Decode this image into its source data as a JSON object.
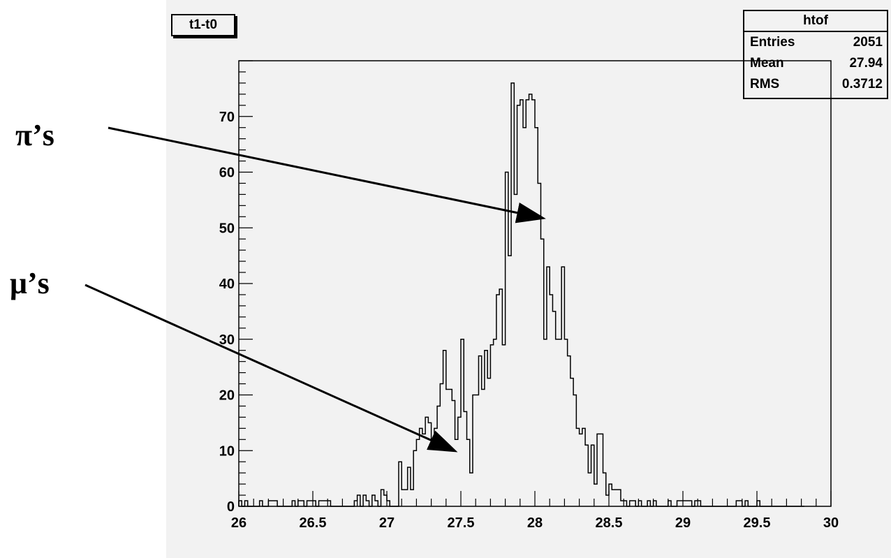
{
  "title": "t1-t0",
  "stats": {
    "name": "htof",
    "rows": [
      {
        "label": "Entries",
        "value": "2051"
      },
      {
        "label": "Mean",
        "value": "27.94"
      },
      {
        "label": "RMS",
        "value": "0.3712"
      }
    ]
  },
  "annotations": {
    "pions": "π’s",
    "muons": "μ’s"
  },
  "chart_data": {
    "type": "bar",
    "title": "t1-t0",
    "xlabel": "",
    "ylabel": "",
    "xlim": [
      26,
      30
    ],
    "ylim": [
      0,
      80
    ],
    "x_ticks": [
      26,
      26.5,
      27,
      27.5,
      28,
      28.5,
      29,
      29.5,
      30
    ],
    "y_ticks": [
      0,
      10,
      20,
      30,
      40,
      50,
      60,
      70
    ],
    "bin_width": 0.02,
    "series": [
      {
        "values": [
          1,
          0,
          1,
          0,
          0,
          0,
          0,
          1,
          0,
          0,
          1,
          1,
          1,
          0,
          0,
          0,
          0,
          0,
          1,
          0,
          1,
          1,
          0,
          1,
          1,
          1,
          0,
          1,
          1,
          1,
          1,
          0,
          0,
          0,
          0,
          0,
          0,
          0,
          0,
          1,
          2,
          0,
          2,
          1,
          0,
          2,
          1,
          0,
          3,
          2,
          1,
          0,
          0,
          0,
          8,
          3,
          3,
          7,
          3,
          10,
          12,
          14,
          13,
          16,
          15,
          12,
          14,
          18,
          22,
          28,
          21,
          21,
          19,
          12,
          16,
          30,
          17,
          12,
          6,
          20,
          20,
          27,
          21,
          28,
          23,
          29,
          30,
          38,
          39,
          29,
          60,
          45,
          76,
          56,
          72,
          73,
          68,
          73,
          74,
          73,
          68,
          58,
          48,
          30,
          43,
          38,
          35,
          30,
          30,
          43,
          30,
          27,
          23,
          20,
          14,
          13,
          14,
          11,
          6,
          11,
          4,
          13,
          13,
          6,
          2,
          4,
          3,
          3,
          3,
          1,
          1,
          0,
          1,
          1,
          0,
          1,
          0,
          0,
          1,
          0,
          1,
          0,
          0,
          0,
          0,
          1,
          0,
          0,
          1,
          1,
          1,
          1,
          1,
          0,
          1,
          1,
          0,
          0,
          0,
          0,
          0,
          0,
          0,
          0,
          0,
          0,
          0,
          0,
          1,
          1,
          0,
          1,
          0,
          0,
          0,
          1,
          0,
          0,
          0,
          0,
          0,
          0,
          0,
          0,
          0,
          0,
          0,
          0,
          0,
          0,
          0
        ]
      }
    ],
    "legend": "top-right"
  }
}
